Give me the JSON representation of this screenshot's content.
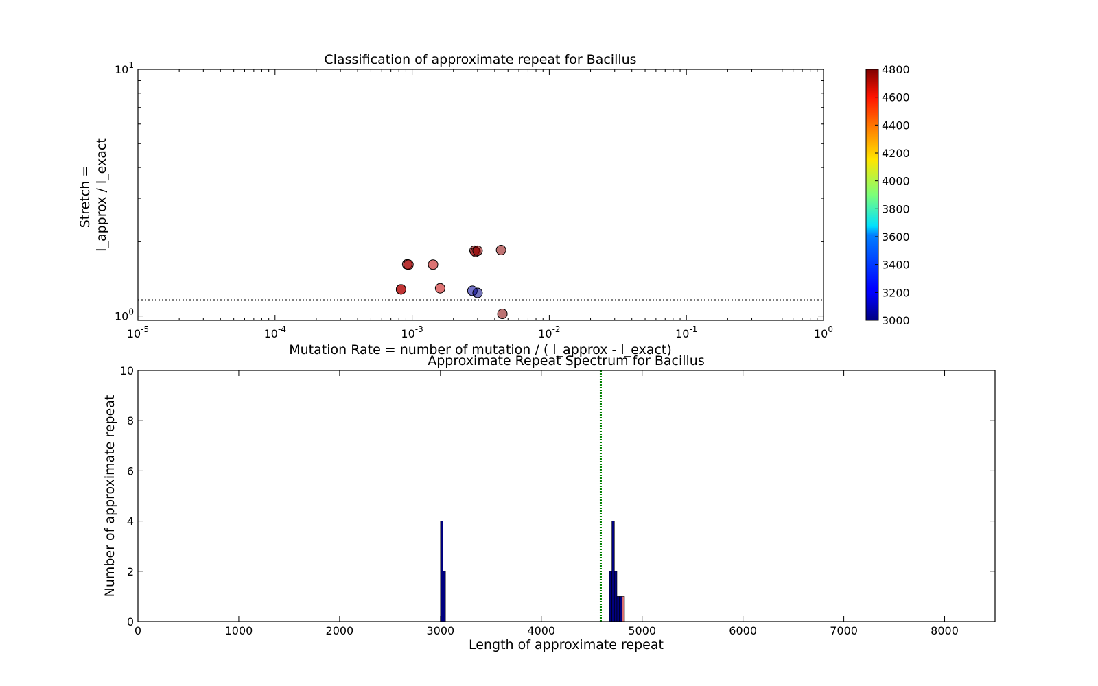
{
  "chart_data": [
    {
      "type": "scatter",
      "title": "Classification of approximate repeat for Bacillus",
      "xlabel": "Mutation Rate = number of mutation / ( l_approx - l_exact)",
      "ylabel_lines": [
        "Stretch =",
        "l_approx / l_exact"
      ],
      "xscale": "log",
      "yscale": "log",
      "xlim": [
        1e-05,
        1
      ],
      "ylim": [
        0.96,
        10
      ],
      "x_tick_values": [
        1e-05,
        0.0001,
        0.001,
        0.01,
        0.1,
        1
      ],
      "x_tick_labels": [
        {
          "base": "10",
          "exp": "-5"
        },
        {
          "base": "10",
          "exp": "-4"
        },
        {
          "base": "10",
          "exp": "-3"
        },
        {
          "base": "10",
          "exp": "-2"
        },
        {
          "base": "10",
          "exp": "-1"
        },
        {
          "base": "10",
          "exp": "0"
        }
      ],
      "y_tick_values": [
        1,
        10
      ],
      "y_tick_labels": [
        {
          "base": "10",
          "exp": "0"
        },
        {
          "base": "10",
          "exp": "1"
        }
      ],
      "reference_line": {
        "y": 1.16,
        "style": "dotted",
        "color": "#000000"
      },
      "colormap": "jet",
      "color_range": [
        3000,
        4800
      ],
      "colorbar_ticks": [
        "3000",
        "3200",
        "3400",
        "3600",
        "3800",
        "4000",
        "4200",
        "4400",
        "4600",
        "4800"
      ],
      "points": [
        {
          "x": 0.00083,
          "y": 1.282,
          "c": 4750
        },
        {
          "x": 0.00083,
          "y": 1.282,
          "c": 4700
        },
        {
          "x": 0.00092,
          "y": 1.62,
          "c": 4760
        },
        {
          "x": 0.00094,
          "y": 1.615,
          "c": 4720
        },
        {
          "x": 0.00142,
          "y": 1.615,
          "c": 4690
        },
        {
          "x": 0.0016,
          "y": 1.295,
          "c": 4680
        },
        {
          "x": 0.00275,
          "y": 1.265,
          "c": 3050
        },
        {
          "x": 0.003,
          "y": 1.24,
          "c": 3000
        },
        {
          "x": 0.00285,
          "y": 1.84,
          "c": 4690
        },
        {
          "x": 0.0029,
          "y": 1.82,
          "c": 4800
        },
        {
          "x": 0.003,
          "y": 1.84,
          "c": 4770
        },
        {
          "x": 0.00445,
          "y": 1.85,
          "c": 4780
        },
        {
          "x": 0.00455,
          "y": 1.02,
          "c": 4790
        }
      ]
    },
    {
      "type": "bar",
      "title": "Approximate Repeat Spectrum for Bacillus",
      "xlabel": "Length of approximate repeat",
      "ylabel": "Number of approximate repeat",
      "xlim": [
        0,
        8500
      ],
      "ylim": [
        0,
        10
      ],
      "x_ticks": [
        0,
        1000,
        2000,
        3000,
        4000,
        5000,
        6000,
        7000,
        8000
      ],
      "y_ticks": [
        0,
        2,
        4,
        6,
        8,
        10
      ],
      "bar_width": 25,
      "bars": [
        {
          "x": 3000,
          "value": 4,
          "color": "#00007f"
        },
        {
          "x": 3025,
          "value": 2,
          "color": "#00007f"
        },
        {
          "x": 4675,
          "value": 2,
          "color": "#00007f"
        },
        {
          "x": 4700,
          "value": 4,
          "color": "#00007f"
        },
        {
          "x": 4725,
          "value": 2,
          "color": "#00007f"
        },
        {
          "x": 4750,
          "value": 1,
          "color": "#00007f"
        },
        {
          "x": 4775,
          "value": 1,
          "color": "#00007f"
        },
        {
          "x": 4800,
          "value": 1,
          "color": "#d97070"
        }
      ],
      "reference_line": {
        "x": 4590,
        "style": "dotted",
        "color": "#008000"
      }
    }
  ]
}
